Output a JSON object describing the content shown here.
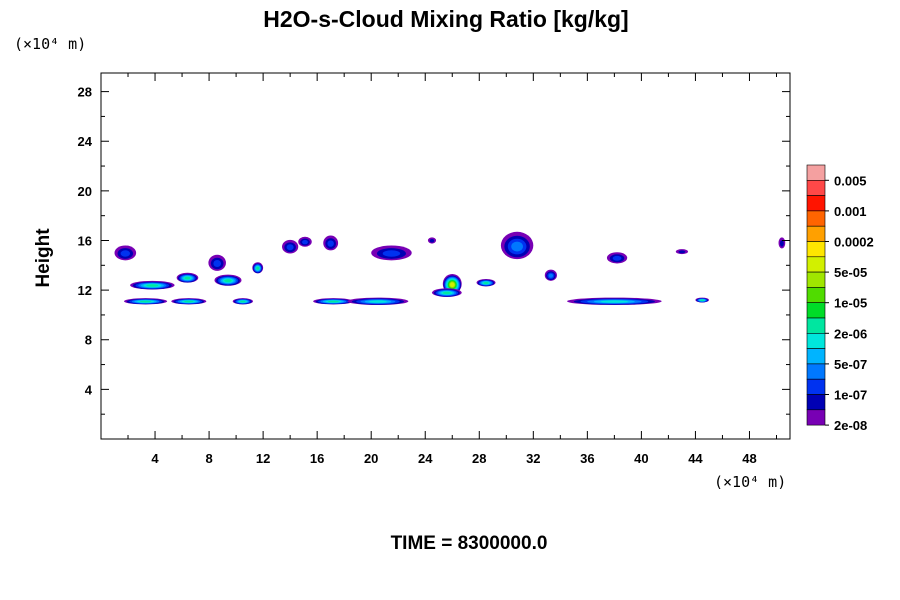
{
  "chart_data": {
    "type": "heatmap",
    "title": "H2O-s-Cloud Mixing Ratio [kg/kg]",
    "ylabel": "Height",
    "xlabel": "",
    "x_unit": "(×10⁴ m)",
    "y_unit": "(×10⁴ m)",
    "xlim": [
      0,
      51
    ],
    "ylim": [
      0,
      29.5
    ],
    "x_ticks": [
      4,
      8,
      12,
      16,
      20,
      24,
      28,
      32,
      36,
      40,
      44,
      48
    ],
    "y_ticks": [
      4,
      8,
      12,
      16,
      20,
      24,
      28
    ],
    "grid": false,
    "colorbar": {
      "colors": [
        "#f4a0a0",
        "#ff4848",
        "#ff1400",
        "#ff6400",
        "#ffa000",
        "#ffe600",
        "#d2f000",
        "#a0e600",
        "#50dc00",
        "#00dc28",
        "#00e6a0",
        "#00e6dc",
        "#00b4ff",
        "#0078ff",
        "#0032f0",
        "#0000b4",
        "#7800b4"
      ],
      "labels": [
        "0.005",
        "0.001",
        "0.0002",
        "5e-05",
        "1e-05",
        "2e-06",
        "5e-07",
        "1e-07",
        "2e-08"
      ]
    },
    "cloud_regions": [
      {
        "x": 1.8,
        "y": 15.0,
        "w": 1.6,
        "h": 1.2,
        "level": 2
      },
      {
        "x": 8.6,
        "y": 14.2,
        "w": 1.3,
        "h": 1.3,
        "level": 2
      },
      {
        "x": 11.6,
        "y": 13.8,
        "w": 0.8,
        "h": 0.9,
        "level": 6
      },
      {
        "x": 14.0,
        "y": 15.5,
        "w": 1.2,
        "h": 1.1,
        "level": 2
      },
      {
        "x": 15.1,
        "y": 15.9,
        "w": 1.0,
        "h": 0.8,
        "level": 2
      },
      {
        "x": 17.0,
        "y": 15.8,
        "w": 1.1,
        "h": 1.2,
        "level": 2
      },
      {
        "x": 21.5,
        "y": 15.0,
        "w": 3.0,
        "h": 1.2,
        "level": 2
      },
      {
        "x": 24.5,
        "y": 16.0,
        "w": 0.6,
        "h": 0.5,
        "level": 1
      },
      {
        "x": 30.8,
        "y": 15.6,
        "w": 2.4,
        "h": 2.2,
        "level": 3
      },
      {
        "x": 38.2,
        "y": 14.6,
        "w": 1.5,
        "h": 0.9,
        "level": 2
      },
      {
        "x": 43.0,
        "y": 15.1,
        "w": 0.9,
        "h": 0.4,
        "level": 1
      },
      {
        "x": 50.4,
        "y": 15.8,
        "w": 0.5,
        "h": 0.9,
        "level": 1
      },
      {
        "x": 3.8,
        "y": 12.4,
        "w": 3.3,
        "h": 0.7,
        "level": 6
      },
      {
        "x": 6.4,
        "y": 13.0,
        "w": 1.6,
        "h": 0.8,
        "level": 6
      },
      {
        "x": 9.4,
        "y": 12.8,
        "w": 2.0,
        "h": 0.9,
        "level": 6
      },
      {
        "x": 3.3,
        "y": 11.1,
        "w": 3.2,
        "h": 0.5,
        "level": 6
      },
      {
        "x": 6.5,
        "y": 11.1,
        "w": 2.6,
        "h": 0.5,
        "level": 6
      },
      {
        "x": 10.5,
        "y": 11.1,
        "w": 1.5,
        "h": 0.5,
        "level": 6
      },
      {
        "x": 17.2,
        "y": 11.1,
        "w": 3.0,
        "h": 0.5,
        "level": 6
      },
      {
        "x": 20.5,
        "y": 11.1,
        "w": 4.5,
        "h": 0.6,
        "level": 5
      },
      {
        "x": 26.0,
        "y": 12.5,
        "w": 1.4,
        "h": 1.6,
        "level": 10
      },
      {
        "x": 25.6,
        "y": 11.8,
        "w": 2.2,
        "h": 0.7,
        "level": 6
      },
      {
        "x": 28.5,
        "y": 12.6,
        "w": 1.4,
        "h": 0.6,
        "level": 6
      },
      {
        "x": 33.3,
        "y": 13.2,
        "w": 0.9,
        "h": 0.9,
        "level": 3
      },
      {
        "x": 38.0,
        "y": 11.1,
        "w": 7.0,
        "h": 0.6,
        "level": 5
      },
      {
        "x": 44.5,
        "y": 11.2,
        "w": 1.0,
        "h": 0.4,
        "level": 6
      }
    ]
  },
  "time_label": "TIME = 8300000.0"
}
